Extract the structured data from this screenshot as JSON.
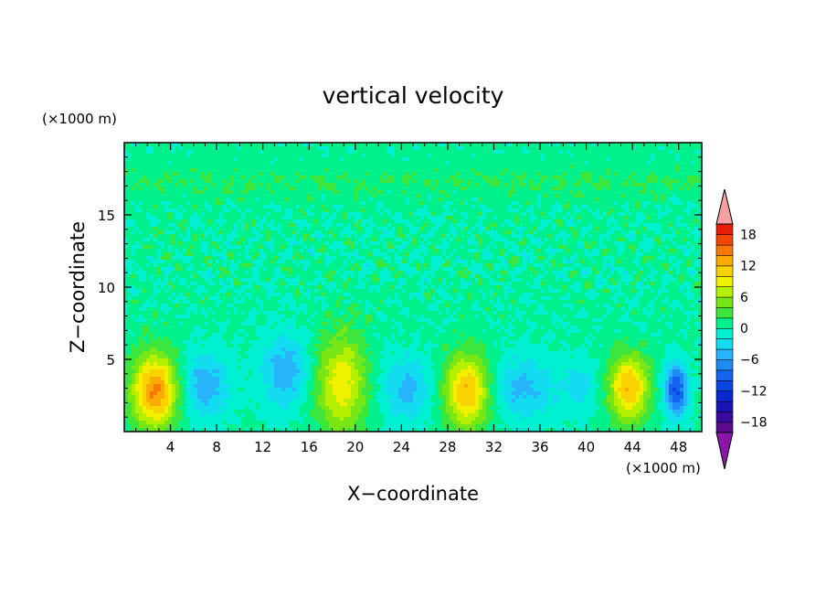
{
  "chart_data": {
    "type": "heatmap",
    "title": "vertical velocity",
    "xlabel": "X−coordinate",
    "ylabel": "Z−coordinate",
    "x_unit": "(×1000 m)",
    "y_unit": "(×1000 m)",
    "xlim": [
      0,
      50
    ],
    "ylim": [
      0,
      20
    ],
    "x_ticks": [
      4,
      8,
      12,
      16,
      20,
      24,
      28,
      32,
      36,
      40,
      44,
      48
    ],
    "x_tick_labels": [
      "4",
      "8",
      "12",
      "16",
      "20",
      "24",
      "28",
      "32",
      "36",
      "40",
      "44",
      "48"
    ],
    "y_ticks": [
      5,
      10,
      15
    ],
    "y_tick_labels": [
      "5",
      "10",
      "15"
    ],
    "colorbar": {
      "levels": [
        -20,
        -18,
        -16,
        -14,
        -12,
        -10,
        -8,
        -6,
        -4,
        -2,
        0,
        2,
        4,
        6,
        8,
        10,
        12,
        14,
        16,
        18,
        20
      ],
      "colors": [
        "#5a0a8c",
        "#3a0aa0",
        "#1a14b4",
        "#0a28d2",
        "#0a46e6",
        "#1464f0",
        "#1e8cf5",
        "#28b4fa",
        "#14dcf0",
        "#00f0d2",
        "#00f08c",
        "#3ce63c",
        "#78e614",
        "#b4f000",
        "#f0f000",
        "#fad200",
        "#faaa00",
        "#fa7800",
        "#f54600",
        "#e61e0a"
      ],
      "under_color": "#8c14a8",
      "over_color": "#f5a0a0",
      "tick_values": [
        18,
        12,
        6,
        0,
        -6,
        -12,
        -18
      ],
      "tick_labels": [
        "18",
        "12",
        "6",
        "0",
        "−6",
        "−12",
        "−18"
      ]
    },
    "features": [
      {
        "x": 2.7,
        "z": 2.8,
        "peak": 14,
        "sx": 1.4,
        "sz": 1.8
      },
      {
        "x": 18.8,
        "z": 3.3,
        "peak": 9,
        "sx": 1.6,
        "sz": 2.4
      },
      {
        "x": 29.7,
        "z": 2.8,
        "peak": 12,
        "sx": 1.4,
        "sz": 1.8
      },
      {
        "x": 43.7,
        "z": 3.0,
        "peak": 12,
        "sx": 1.2,
        "sz": 1.6
      },
      {
        "x": 47.8,
        "z": 2.9,
        "peak": -11,
        "sx": 0.7,
        "sz": 1.3
      },
      {
        "x": 7.0,
        "z": 3.2,
        "peak": -6,
        "sx": 1.5,
        "sz": 1.6
      },
      {
        "x": 14.0,
        "z": 4.2,
        "peak": -6,
        "sx": 1.5,
        "sz": 1.8
      },
      {
        "x": 24.5,
        "z": 3.0,
        "peak": -5,
        "sx": 1.7,
        "sz": 1.6
      },
      {
        "x": 34.5,
        "z": 3.0,
        "peak": -5,
        "sx": 2.0,
        "sz": 1.6
      },
      {
        "x": 39.5,
        "z": 3.2,
        "peak": -3,
        "sx": 1.2,
        "sz": 1.4
      }
    ]
  }
}
